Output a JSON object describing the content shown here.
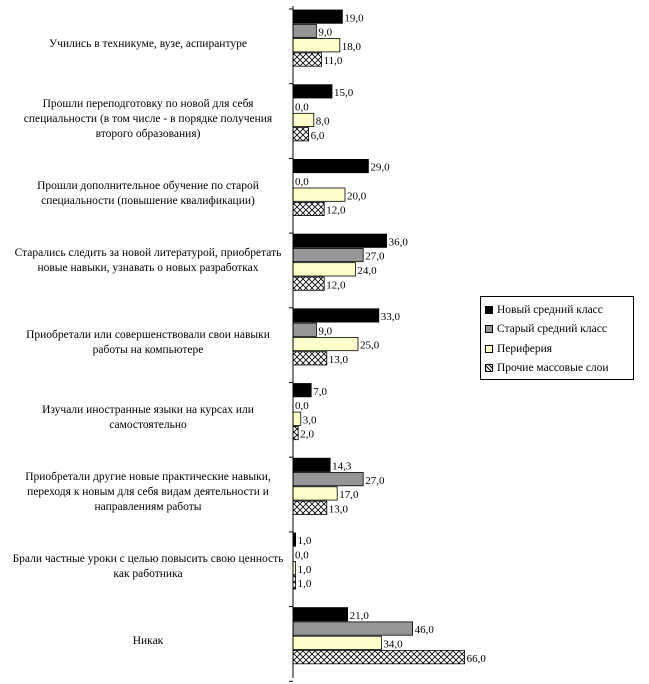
{
  "chart_data": {
    "type": "bar",
    "orientation": "horizontal",
    "categories": [
      "Учились в техникуме, вузе, аспирантуре",
      "Прошли переподготовку по новой для себя специальности (в том числе - в порядке получения второго образования)",
      "Прошли дополнительное обучение по старой специальности (повышение квалификации)",
      "Старались следить за новой литературой, приобретать новые навыки, узнавать о новых разработках",
      "Приобретали или совершенствовали свои навыки работы на компьютере",
      "Изучали иностранные языки на курсах или самостоятельно",
      "Приобретали другие новые практические навыки, переходя к новым для себя видам деятельности и направлениям работы",
      "Брали частные уроки с целью повысить свою ценность как работника",
      "Никак"
    ],
    "series": [
      {
        "name": "Новый средний класс",
        "color": "#000000",
        "pattern": "solid",
        "values": [
          19.0,
          15.0,
          29.0,
          36.0,
          33.0,
          7.0,
          14.3,
          1.0,
          21.0
        ],
        "labels": [
          "19,0",
          "15,0",
          "29,0",
          "36,0",
          "33,0",
          "7,0",
          "14,3",
          "1,0",
          "21,0"
        ]
      },
      {
        "name": "Старый средний класс",
        "color": "#969696",
        "pattern": "solid",
        "values": [
          9.0,
          0.0,
          0.0,
          27.0,
          9.0,
          0.0,
          27.0,
          0.0,
          46.0
        ],
        "labels": [
          "9,0",
          "0,0",
          "0,0",
          "27,0",
          "9,0",
          "0,0",
          "27,0",
          "0,0",
          "46,0"
        ]
      },
      {
        "name": "Периферия",
        "color": "#FFFFCC",
        "pattern": "solid",
        "values": [
          18.0,
          8.0,
          20.0,
          24.0,
          25.0,
          3.0,
          17.0,
          1.0,
          34.0
        ],
        "labels": [
          "18,0",
          "8,0",
          "20,0",
          "24,0",
          "25,0",
          "3,0",
          "17,0",
          "1,0",
          "34,0"
        ]
      },
      {
        "name": "Прочие массовые слои",
        "color": "#FFFFFF",
        "pattern": "crosshatch",
        "values": [
          11.0,
          6.0,
          12.0,
          12.0,
          13.0,
          2.0,
          13.0,
          1.0,
          66.0
        ],
        "labels": [
          "11,0",
          "6,0",
          "12,0",
          "12,0",
          "13,0",
          "2,0",
          "13,0",
          "1,0",
          "66,0"
        ]
      }
    ],
    "legend_position": "right"
  }
}
